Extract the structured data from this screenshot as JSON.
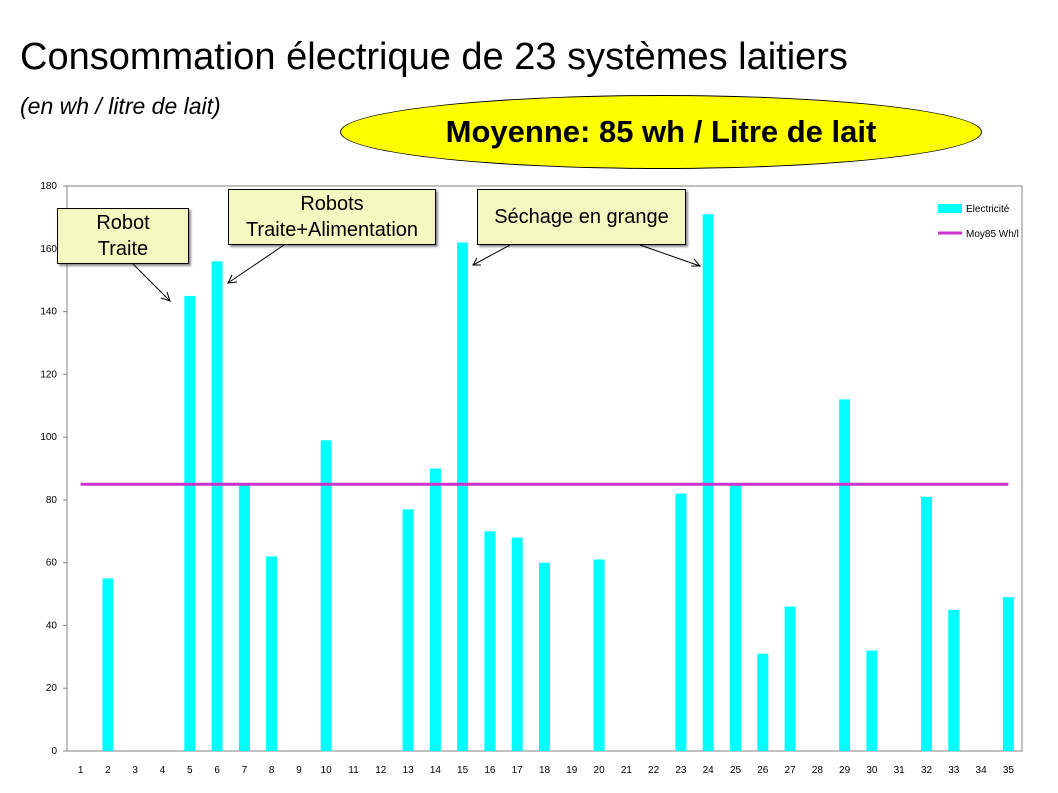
{
  "header": {
    "title": "Consommation électrique de 23 systèmes laitiers",
    "subtitle": "(en wh / litre de lait)",
    "average_note": "Moyenne: 85 wh / Litre de lait",
    "average_fill": "#ffff00"
  },
  "callouts": [
    {
      "line1": "Robot",
      "line2": "Traite"
    },
    {
      "line1": "Robots",
      "line2": "Traite+Alimentation"
    },
    {
      "line1": "Séchage en grange",
      "line2": ""
    }
  ],
  "chart_data": {
    "type": "bar",
    "categories": [
      "1",
      "2",
      "3",
      "4",
      "5",
      "6",
      "7",
      "8",
      "9",
      "10",
      "11",
      "12",
      "13",
      "14",
      "15",
      "16",
      "17",
      "18",
      "19",
      "20",
      "21",
      "22",
      "23",
      "24",
      "25",
      "26",
      "27",
      "28",
      "29",
      "30",
      "31",
      "32",
      "33",
      "34",
      "35"
    ],
    "series": [
      {
        "name": "Electricité",
        "type": "bar",
        "color": "#00ffff",
        "values": [
          null,
          55,
          null,
          null,
          145,
          156,
          85,
          62,
          null,
          99,
          null,
          null,
          77,
          90,
          162,
          70,
          68,
          60,
          null,
          61,
          null,
          null,
          82,
          171,
          85,
          31,
          46,
          null,
          112,
          32,
          null,
          81,
          45,
          null,
          49
        ]
      },
      {
        "name": "Moy85 Wh/l",
        "type": "line",
        "color": "#cc33cc",
        "value": 85
      }
    ],
    "y_ticks": [
      "0",
      "20",
      "40",
      "60",
      "80",
      "100",
      "120",
      "140",
      "160",
      "180"
    ],
    "ylim": [
      0,
      180
    ],
    "grid": false,
    "legend": "top-right",
    "xlabel": "",
    "ylabel": ""
  }
}
